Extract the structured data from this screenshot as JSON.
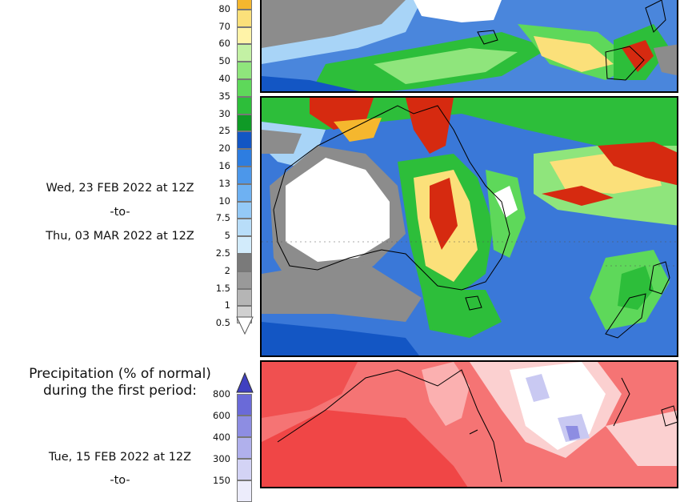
{
  "second_period": {
    "date_start": "Wed, 23 FEB 2022 at 12Z",
    "date_to": "-to-",
    "date_end": "Thu, 03 MAR 2022 at 12Z"
  },
  "precip_colorbar": {
    "ticks": [
      "80",
      "70",
      "60",
      "50",
      "40",
      "35",
      "30",
      "25",
      "20",
      "16",
      "13",
      "10",
      "7.5",
      "5",
      "2.5",
      "2",
      "1.5",
      "1",
      "0.5"
    ],
    "colors": [
      "#f5b72e",
      "#fbe07a",
      "#fff3a8",
      "#c3f1a4",
      "#8fe57c",
      "#5ed85a",
      "#2dbe3a",
      "#0f9a26",
      "#1356c4",
      "#2d7de0",
      "#4c97ea",
      "#6eb1f2",
      "#94c9f6",
      "#b8ddf9",
      "#d2ebfb",
      "#7a7a7a",
      "#999999",
      "#b5b5b5",
      "#d0d0d0"
    ]
  },
  "percent_section": {
    "title_line1": "Precipitation (% of normal)",
    "title_line2": "during the first period:",
    "date_start": "Tue, 15 FEB 2022 at 12Z",
    "date_to": "-to-",
    "ticks": [
      "800",
      "600",
      "400",
      "300",
      "150"
    ],
    "colors": [
      "#6a6ad8",
      "#8d8de2",
      "#b0b0ec",
      "#d3d3f5",
      "#ececfb"
    ]
  },
  "colors": {
    "ocean_blue": "#3a78d8",
    "land_dry": "#ffffff",
    "dry_gray": "#8c8c8c",
    "heavy_rain": "#d62a10",
    "below_normal": "#f05050"
  }
}
